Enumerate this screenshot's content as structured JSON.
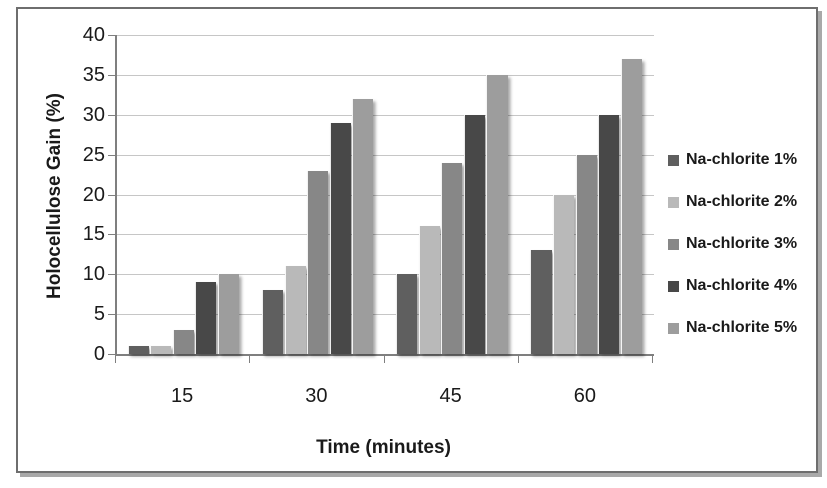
{
  "chart_data": {
    "type": "bar",
    "title": "",
    "xlabel": "Time (minutes)",
    "ylabel": "Holocellulose Gain (%)",
    "categories": [
      "15",
      "30",
      "45",
      "60"
    ],
    "series": [
      {
        "name": "Na-chlorite 1%",
        "color": "#5f5f5f",
        "values": [
          1,
          8,
          10,
          13
        ]
      },
      {
        "name": "Na-chlorite 2%",
        "color": "#b9b9b9",
        "values": [
          1,
          11,
          16,
          20
        ]
      },
      {
        "name": "Na-chlorite 3%",
        "color": "#878787",
        "values": [
          3,
          23,
          24,
          25
        ]
      },
      {
        "name": "Na-chlorite 4%",
        "color": "#484848",
        "values": [
          9,
          29,
          30,
          30
        ]
      },
      {
        "name": "Na-chlorite 5%",
        "color": "#9d9d9d",
        "values": [
          10,
          32,
          35,
          37
        ]
      }
    ],
    "ylim": [
      0,
      40
    ],
    "yticks": [
      0,
      5,
      10,
      15,
      20,
      25,
      30,
      35,
      40
    ],
    "grid": true,
    "legend_position": "right",
    "colors": {
      "gridline": "#c6c6c6",
      "axis_line": "#7f7f7f",
      "text": "#1a1a1a",
      "frame_border": "#6e6e6e",
      "frame_shadow": "#a9a9a9",
      "background": "#ffffff"
    }
  }
}
